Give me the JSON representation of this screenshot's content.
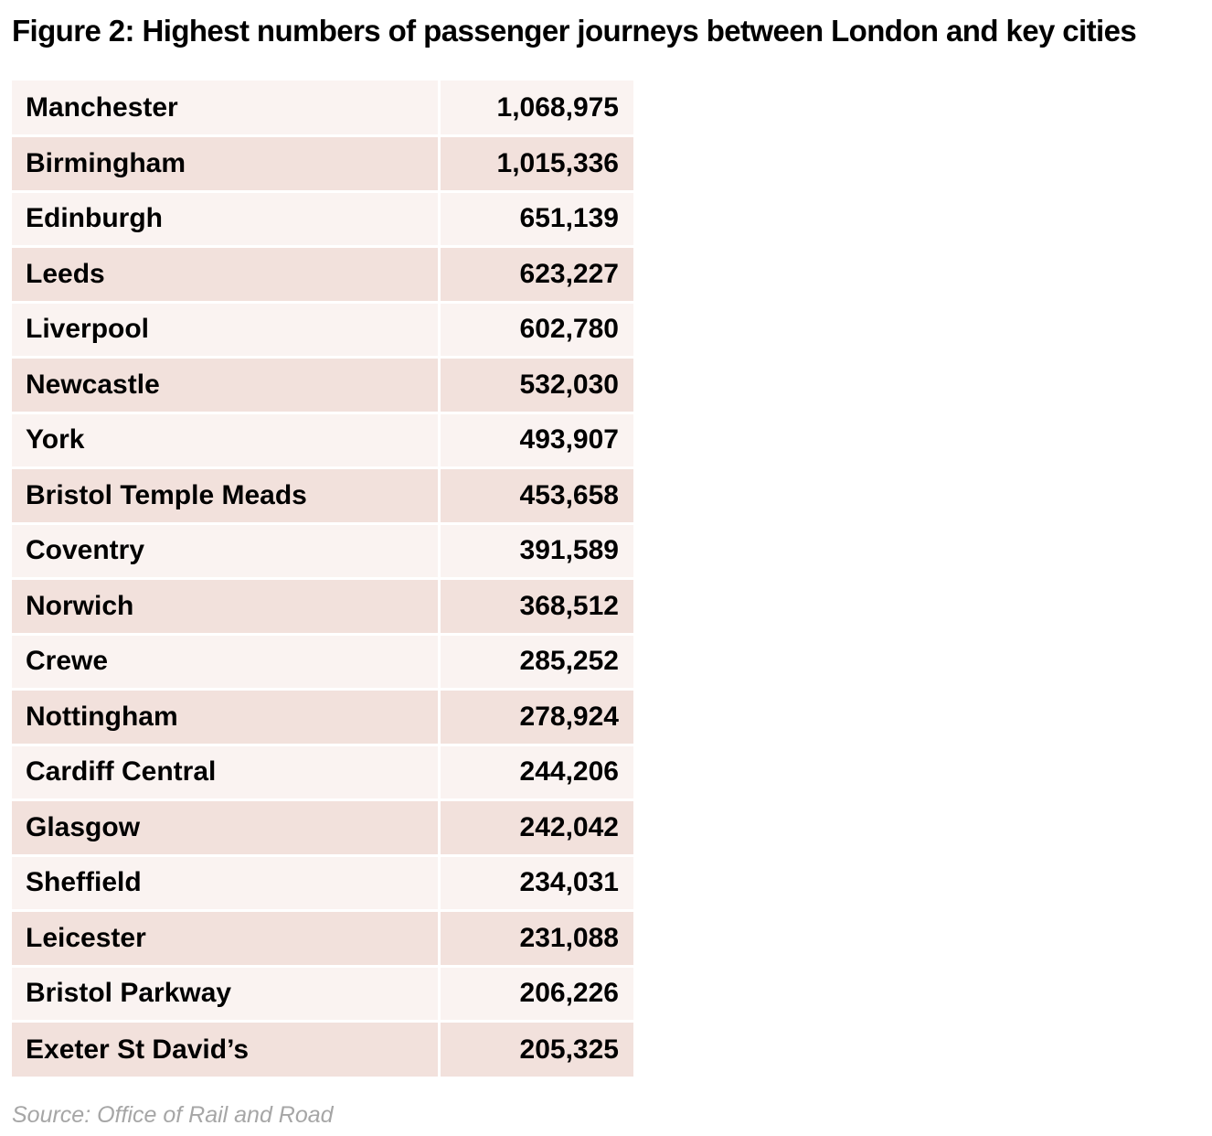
{
  "title": "Figure 2: Highest numbers of passenger journeys between London and key cities",
  "table": {
    "rows": [
      {
        "city": "Manchester",
        "journeys": "1,068,975"
      },
      {
        "city": "Birmingham",
        "journeys": "1,015,336"
      },
      {
        "city": "Edinburgh",
        "journeys": "651,139"
      },
      {
        "city": "Leeds",
        "journeys": "623,227"
      },
      {
        "city": "Liverpool",
        "journeys": "602,780"
      },
      {
        "city": "Newcastle",
        "journeys": "532,030"
      },
      {
        "city": "York",
        "journeys": "493,907"
      },
      {
        "city": "Bristol Temple Meads",
        "journeys": "453,658"
      },
      {
        "city": "Coventry",
        "journeys": "391,589"
      },
      {
        "city": "Norwich",
        "journeys": "368,512"
      },
      {
        "city": "Crewe",
        "journeys": "285,252"
      },
      {
        "city": "Nottingham",
        "journeys": "278,924"
      },
      {
        "city": "Cardiff Central",
        "journeys": "244,206"
      },
      {
        "city": "Glasgow",
        "journeys": "242,042"
      },
      {
        "city": "Sheffield",
        "journeys": "234,031"
      },
      {
        "city": "Leicester",
        "journeys": "231,088"
      },
      {
        "city": "Bristol Parkway",
        "journeys": "206,226"
      },
      {
        "city": "Exeter St David’s",
        "journeys": "205,325"
      }
    ]
  },
  "colors": {
    "row_light": "#faf3f1",
    "row_dark": "#f2e1dc",
    "source_text": "#a6a6a6"
  },
  "source": "Source: Office of Rail and Road"
}
